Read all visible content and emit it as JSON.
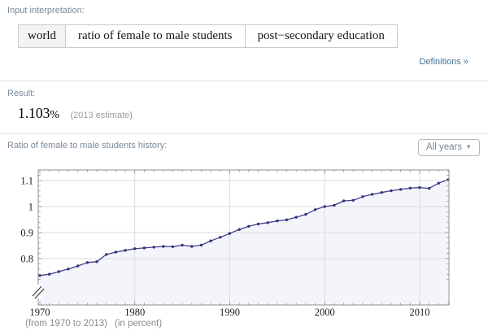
{
  "input_interpretation": {
    "label": "Input interpretation:",
    "cells": [
      "world",
      "ratio of female to male students",
      "post−secondary education"
    ],
    "definitions_link": "Definitions »"
  },
  "result": {
    "label": "Result:",
    "value": "1.103",
    "unit": "%",
    "note": "(2013 estimate)"
  },
  "history": {
    "label": "Ratio of female to male students history:",
    "dropdown_label": "All years",
    "dropdown_caret": "▼"
  },
  "chart_data": {
    "type": "line",
    "title": "Ratio of female to male students history",
    "x": [
      1970,
      1971,
      1972,
      1973,
      1974,
      1975,
      1976,
      1977,
      1978,
      1979,
      1980,
      1981,
      1982,
      1983,
      1984,
      1985,
      1986,
      1987,
      1988,
      1989,
      1990,
      1991,
      1992,
      1993,
      1994,
      1995,
      1996,
      1997,
      1998,
      1999,
      2000,
      2001,
      2002,
      2003,
      2004,
      2005,
      2006,
      2007,
      2008,
      2009,
      2010,
      2011,
      2012,
      2013
    ],
    "values": [
      0.735,
      0.74,
      0.75,
      0.76,
      0.772,
      0.785,
      0.788,
      0.816,
      0.825,
      0.832,
      0.838,
      0.841,
      0.844,
      0.847,
      0.846,
      0.852,
      0.847,
      0.852,
      0.868,
      0.882,
      0.897,
      0.912,
      0.924,
      0.933,
      0.938,
      0.945,
      0.949,
      0.959,
      0.97,
      0.988,
      1.0,
      1.005,
      1.022,
      1.024,
      1.038,
      1.047,
      1.054,
      1.061,
      1.066,
      1.071,
      1.073,
      1.07,
      1.09,
      1.103
    ],
    "xlabel": "",
    "ylabel": "",
    "xlim": [
      1970,
      2013
    ],
    "ylim_display": [
      0.72,
      1.12
    ],
    "xticks": [
      1970,
      1980,
      1990,
      2000,
      2010
    ],
    "yticks": [
      0.8,
      0.9,
      1.0,
      1.1
    ],
    "ytick_labels": [
      "0.8",
      "0.9",
      "1",
      "1.1"
    ],
    "grid": true,
    "legend": "none",
    "axis_break": true,
    "line_color": "#41418f",
    "point_color": "#34347c",
    "fill_color": "#f4f4fb",
    "grid_color": "#dcdce4",
    "frame_color": "#909090",
    "captions": [
      "(from 1970 to 2013)",
      "(in percent)"
    ]
  }
}
